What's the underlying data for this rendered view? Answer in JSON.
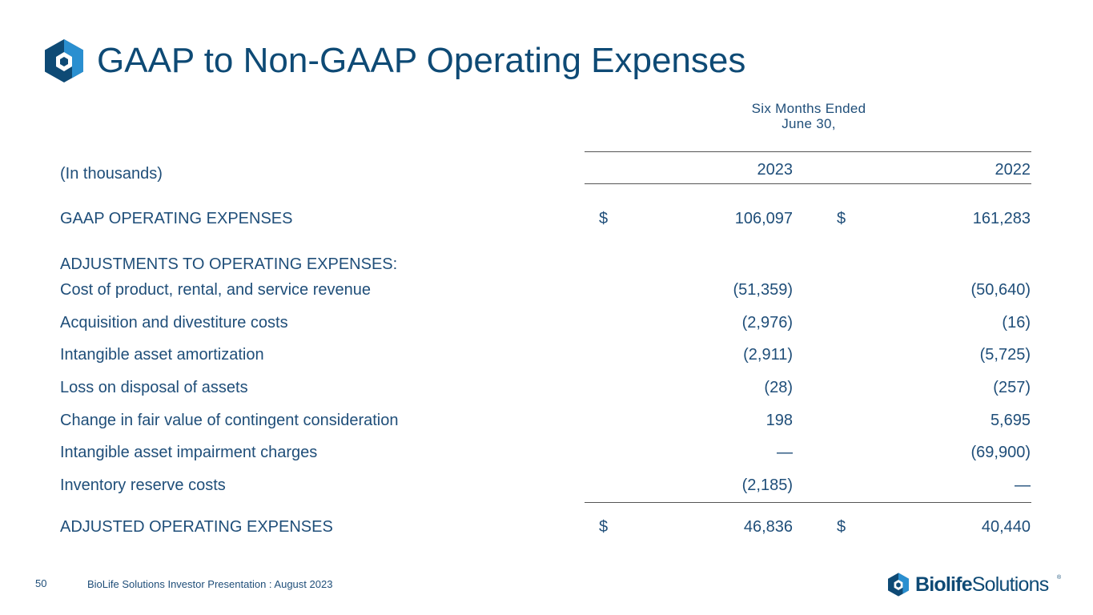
{
  "header": {
    "title": "GAAP to Non-GAAP Operating Expenses"
  },
  "table": {
    "period_line1": "Six Months Ended",
    "period_line2": "June 30,",
    "units_label": "(In thousands)",
    "columns": [
      "2023",
      "2022"
    ],
    "currency_symbol": "$",
    "gaap": {
      "label": "GAAP OPERATING EXPENSES",
      "v2023": "106,097",
      "v2022": "161,283"
    },
    "adjustments_heading": "ADJUSTMENTS TO OPERATING EXPENSES:",
    "adjustments": [
      {
        "label": "Cost of product, rental, and service revenue",
        "v2023": "(51,359)",
        "v2022": "(50,640)"
      },
      {
        "label": "Acquisition and divestiture costs",
        "v2023": "(2,976)",
        "v2022": "(16)"
      },
      {
        "label": "Intangible asset amortization",
        "v2023": "(2,911)",
        "v2022": "(5,725)"
      },
      {
        "label": "Loss on disposal of assets",
        "v2023": "(28)",
        "v2022": "(257)"
      },
      {
        "label": "Change in fair value of contingent consideration",
        "v2023": "198",
        "v2022": "5,695"
      },
      {
        "label": "Intangible asset impairment charges",
        "v2023": "—",
        "v2022": "(69,900)"
      },
      {
        "label": "Inventory reserve costs",
        "v2023": "(2,185)",
        "v2022": "—"
      }
    ],
    "adjusted": {
      "label": "ADJUSTED OPERATING EXPENSES",
      "v2023": "46,836",
      "v2022": "40,440"
    }
  },
  "footer": {
    "page_number": "50",
    "text": "BioLife Solutions Investor Presentation : August 2023",
    "brand_part1": "Biolife",
    "brand_part2": "Solutions",
    "brand_mark": "®"
  },
  "colors": {
    "title": "#0e4a75",
    "text": "#1f4e79",
    "logo_dark": "#0e4a75",
    "logo_light": "#2a8fd0"
  }
}
